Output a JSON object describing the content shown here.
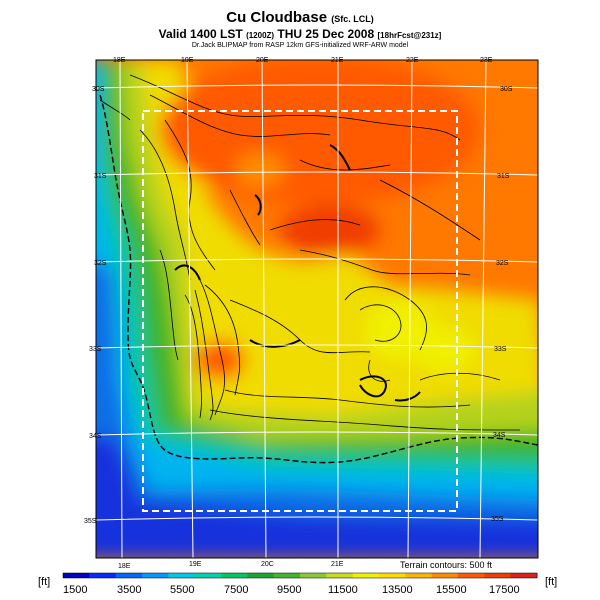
{
  "header": {
    "title": "Cu Cloudbase",
    "title_suffix": "(Sfc. LCL)",
    "valid": "Valid 1400 LST",
    "valid_code": "(1200Z)",
    "valid_date": "THU 25 Dec 2008",
    "valid_tail": "[18hrFcst@231z]",
    "subtitle": "Dr.Jack BLIPMAP from RASP 12km GFS-initialized WRF-ARW model"
  },
  "map": {
    "lon_top": [
      "18E",
      "19E",
      "20E",
      "21E",
      "22E",
      "23E"
    ],
    "lon_bottom": [
      "18E",
      "19E",
      "20C",
      "21E"
    ],
    "lat_left": [
      "30S",
      "31S",
      "32S",
      "33S",
      "34S",
      "35S"
    ],
    "lat_right": [
      "30S",
      "31S",
      "32S",
      "33S",
      "34S",
      "35S"
    ],
    "terrain_note": "Terrain contours: 500 ft"
  },
  "colorbar": {
    "unit": "[ft]",
    "labels": [
      "1500",
      "3500",
      "5500",
      "7500",
      "9500",
      "11500",
      "13500",
      "15500",
      "17500"
    ],
    "colors": [
      "#0000c8",
      "#0a28ff",
      "#0066ff",
      "#0099ff",
      "#00c8e6",
      "#00d2aa",
      "#00c864",
      "#14aa32",
      "#46b428",
      "#8cc832",
      "#c8dc1e",
      "#f0f000",
      "#ffdc00",
      "#ffb400",
      "#ff8c00",
      "#ff5a00",
      "#f03c00",
      "#dc1e1e"
    ]
  }
}
